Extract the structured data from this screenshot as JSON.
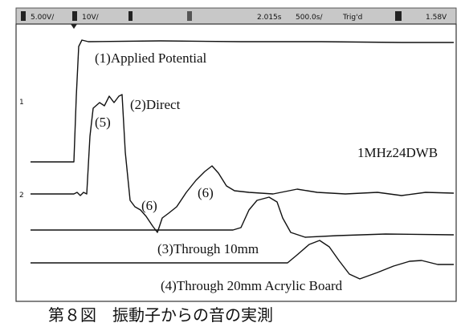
{
  "status_bar": {
    "ch1_scale": "5.00V/",
    "ch2_scale": "10V/",
    "delay": "2.015s",
    "timebase": "500.0s/",
    "trigger_state": "Trig'd",
    "trigger_level": "1.58V"
  },
  "channel_markers": [
    "1",
    "2"
  ],
  "labels": {
    "applied": "(1)Applied Potential",
    "direct": "(2)Direct",
    "five": "(5)",
    "probe": "1MHz24DWB",
    "six_a": "(6)",
    "six_b": "(6)",
    "through10": "(3)Through 10mm",
    "through20": "(4)Through 20mm Acrylic Board"
  },
  "caption": "第８図　振動子からの音の実測"
}
